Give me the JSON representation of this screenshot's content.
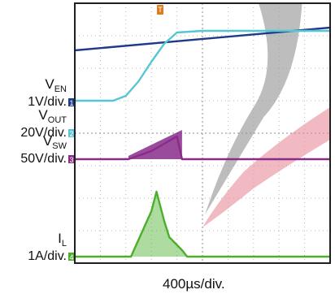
{
  "chart_data": {
    "type": "line",
    "timebase": "400µs/div.",
    "trigger_marker": "T",
    "colors": {
      "grid": "#b9b9b9",
      "frame": "#1f1f1f",
      "ch1": "#1e3a8a",
      "ch2": "#55c6d4",
      "ch3": "#8a2b8a",
      "ch4": "#4caf2a",
      "trigger": "#e07a1f",
      "callout_gray": "#9a9a9a",
      "callout_pink": "#e88a9a"
    },
    "channels": [
      {
        "id": "1",
        "name": "EN",
        "label_main": "V",
        "label_sub": "EN",
        "scale": "1V/div.",
        "color": "#1e3a8a",
        "baseline_div": 4.95,
        "x": [
          0,
          10
        ],
        "y_div": [
          6.55,
          7.25
        ]
      },
      {
        "id": "2",
        "name": "OUT",
        "label_main": "V",
        "label_sub": "OUT",
        "scale": "20V/div.",
        "color": "#55c6d4",
        "baseline_div": 4.0,
        "x": [
          0,
          1.5,
          2.0,
          2.5,
          3.0,
          3.5,
          4.0,
          5.0,
          10
        ],
        "y_div": [
          5.0,
          5.0,
          5.15,
          5.6,
          6.2,
          6.75,
          7.1,
          7.15,
          7.15
        ]
      },
      {
        "id": "3",
        "name": "SW",
        "label_main": "V",
        "label_sub": "SW",
        "scale": "50V/div.",
        "color": "#8a2b8a",
        "baseline_div": 3.2,
        "x": [
          0,
          2.1,
          3.0,
          4.0,
          4.2,
          10
        ],
        "y_div": [
          3.2,
          3.2,
          3.45,
          3.9,
          3.2,
          3.2
        ],
        "switching_burst_x": [
          2.1,
          4.2
        ],
        "burst_peak_div": [
          0.1,
          0.9
        ]
      },
      {
        "id": "4",
        "name": "L",
        "label_main": "I",
        "label_sub": "L",
        "scale": "1A/div.",
        "color": "#4caf2a",
        "baseline_div": 0.2,
        "x": [
          0,
          2.2,
          2.6,
          3.0,
          3.2,
          3.5,
          3.7,
          4.2,
          4.4,
          10
        ],
        "y_div": [
          0.2,
          0.2,
          0.9,
          1.6,
          2.2,
          1.3,
          0.8,
          0.4,
          0.2,
          0.2
        ],
        "peak_current_div": 2.25
      }
    ],
    "grid": true,
    "x_divs": 10,
    "y_divs": 8
  }
}
